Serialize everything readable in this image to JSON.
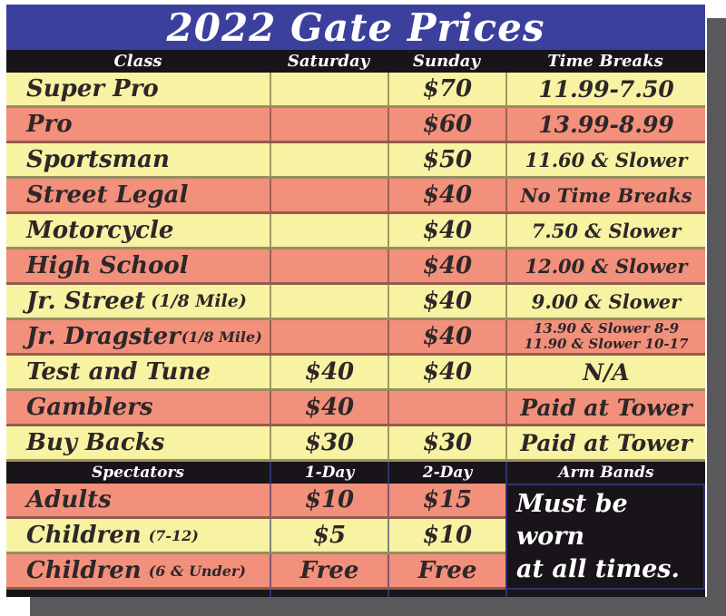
{
  "title": "2022 Gate Prices",
  "colors": {
    "title_bar_blue": "#3b409d",
    "header_black": "#191419",
    "row_yellow": "#f8f3a2",
    "row_salmon": "#f2907b",
    "text_ink": "#2d2729",
    "header_text_white": "#ffffff",
    "drop_shadow_gray": "#59595b",
    "navy_accent_line": "#2e3270"
  },
  "class_table": {
    "headers": {
      "class": "Class",
      "saturday": "Saturday",
      "sunday": "Sunday",
      "time_breaks": "Time Breaks"
    },
    "rows": [
      {
        "name": "Super Pro",
        "paren": "",
        "saturday": "",
        "sunday": "$70",
        "time_breaks": "11.99-7.50"
      },
      {
        "name": "Pro",
        "paren": "",
        "saturday": "",
        "sunday": "$60",
        "time_breaks": "13.99-8.99"
      },
      {
        "name": "Sportsman",
        "paren": "",
        "saturday": "",
        "sunday": "$50",
        "time_breaks": "11.60 & Slower"
      },
      {
        "name": "Street Legal",
        "paren": "",
        "saturday": "",
        "sunday": "$40",
        "time_breaks": "No Time Breaks"
      },
      {
        "name": "Motorcycle",
        "paren": "",
        "saturday": "",
        "sunday": "$40",
        "time_breaks": "7.50 & Slower"
      },
      {
        "name": "High School",
        "paren": "",
        "saturday": "",
        "sunday": "$40",
        "time_breaks": "12.00 & Slower"
      },
      {
        "name": "Jr. Street",
        "paren": "(1/8 Mile)",
        "saturday": "",
        "sunday": "$40",
        "time_breaks": "9.00 & Slower"
      },
      {
        "name": "Jr. Dragster",
        "paren": "(1/8 Mile)",
        "saturday": "",
        "sunday": "$40",
        "time_breaks_line1": "13.90 & Slower 8-9",
        "time_breaks_line2": "11.90 & Slower 10-17"
      },
      {
        "name": "Test and Tune",
        "paren": "",
        "saturday": "$40",
        "sunday": "$40",
        "time_breaks": "N/A"
      },
      {
        "name": "Gamblers",
        "paren": "",
        "saturday": "$40",
        "sunday": "",
        "time_breaks": "Paid at Tower"
      },
      {
        "name": "Buy Backs",
        "paren": "",
        "saturday": "$30",
        "sunday": "$30",
        "time_breaks": "Paid at Tower"
      }
    ]
  },
  "spectator_table": {
    "headers": {
      "spectators": "Spectators",
      "one_day": "1-Day",
      "two_day": "2-Day",
      "arm_bands": "Arm Bands"
    },
    "rows": [
      {
        "name": "Adults",
        "paren": "",
        "one_day": "$10",
        "two_day": "$15"
      },
      {
        "name": "Children",
        "paren": "(7-12)",
        "one_day": "$5",
        "two_day": "$10"
      },
      {
        "name": "Children",
        "paren": "(6 & Under)",
        "one_day": "Free",
        "two_day": "Free"
      }
    ],
    "arm_bands_note": {
      "line1": "Must be worn",
      "line2": "at all times."
    }
  }
}
